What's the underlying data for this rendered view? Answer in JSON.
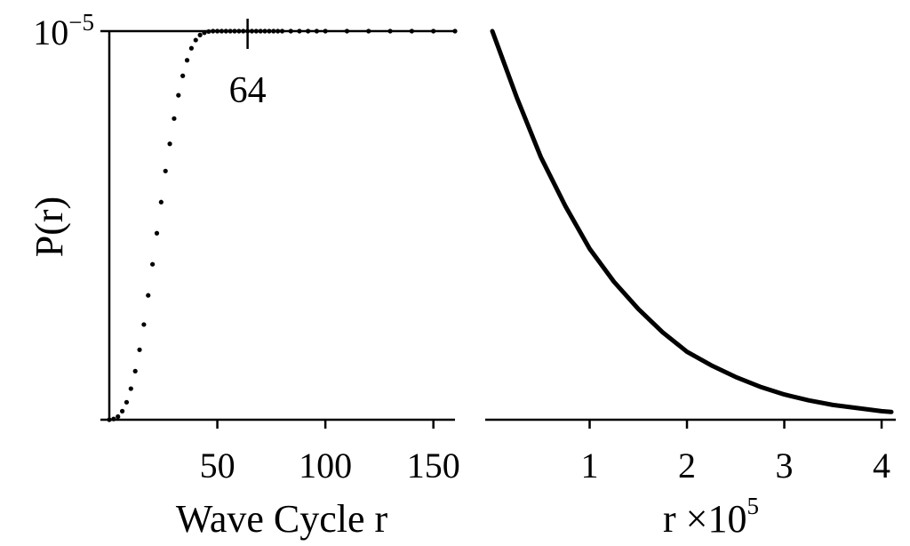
{
  "chart_data": [
    {
      "type": "scatter",
      "ylabel": "P(r)",
      "xlabel": "Wave Cycle r",
      "xlim": [
        0,
        160
      ],
      "ylim": [
        0,
        1
      ],
      "y_top_label": {
        "base": "10",
        "exponent": "−5"
      },
      "x_ticks": [
        50,
        100,
        150
      ],
      "x_tick_labels": [
        "50",
        "100",
        "150"
      ],
      "annotation": {
        "x": 64,
        "text": "64"
      },
      "series": [
        {
          "x": [
            0,
            2,
            4,
            6,
            8,
            10,
            12,
            14,
            16,
            18,
            20,
            22,
            24,
            26,
            28,
            30,
            32,
            34,
            36,
            38,
            40,
            42,
            44,
            46,
            48,
            50,
            52,
            54,
            56,
            58,
            60,
            62,
            64,
            66,
            68,
            70,
            72,
            74,
            76,
            78,
            80,
            84,
            88,
            92,
            96,
            100,
            110,
            120,
            130,
            140,
            150,
            160
          ],
          "y": [
            0,
            0.002,
            0.008,
            0.022,
            0.045,
            0.08,
            0.125,
            0.18,
            0.245,
            0.32,
            0.4,
            0.48,
            0.56,
            0.64,
            0.71,
            0.775,
            0.835,
            0.885,
            0.925,
            0.956,
            0.977,
            0.99,
            0.996,
            0.999,
            1,
            1,
            1,
            1,
            1,
            1,
            1,
            1,
            1,
            1,
            1,
            1,
            1,
            1,
            1,
            1,
            1,
            1,
            1,
            1,
            1,
            1,
            1,
            1,
            1,
            1,
            1,
            1
          ]
        }
      ]
    },
    {
      "type": "line",
      "xlabel": "r ×10",
      "xlabel_exponent": "5",
      "xlim": [
        0,
        4.1
      ],
      "ylim": [
        0,
        1
      ],
      "x_ticks": [
        1,
        2,
        3,
        4
      ],
      "x_tick_labels": [
        "1",
        "2",
        "3",
        "4"
      ],
      "series": [
        {
          "x": [
            0,
            0.25,
            0.5,
            0.75,
            1,
            1.25,
            1.5,
            1.75,
            2,
            2.25,
            2.5,
            2.75,
            3,
            3.25,
            3.5,
            3.75,
            4,
            4.1
          ],
          "y": [
            1,
            0.83,
            0.675,
            0.55,
            0.44,
            0.355,
            0.285,
            0.225,
            0.175,
            0.14,
            0.11,
            0.085,
            0.065,
            0.05,
            0.038,
            0.03,
            0.022,
            0.02
          ]
        }
      ]
    }
  ]
}
